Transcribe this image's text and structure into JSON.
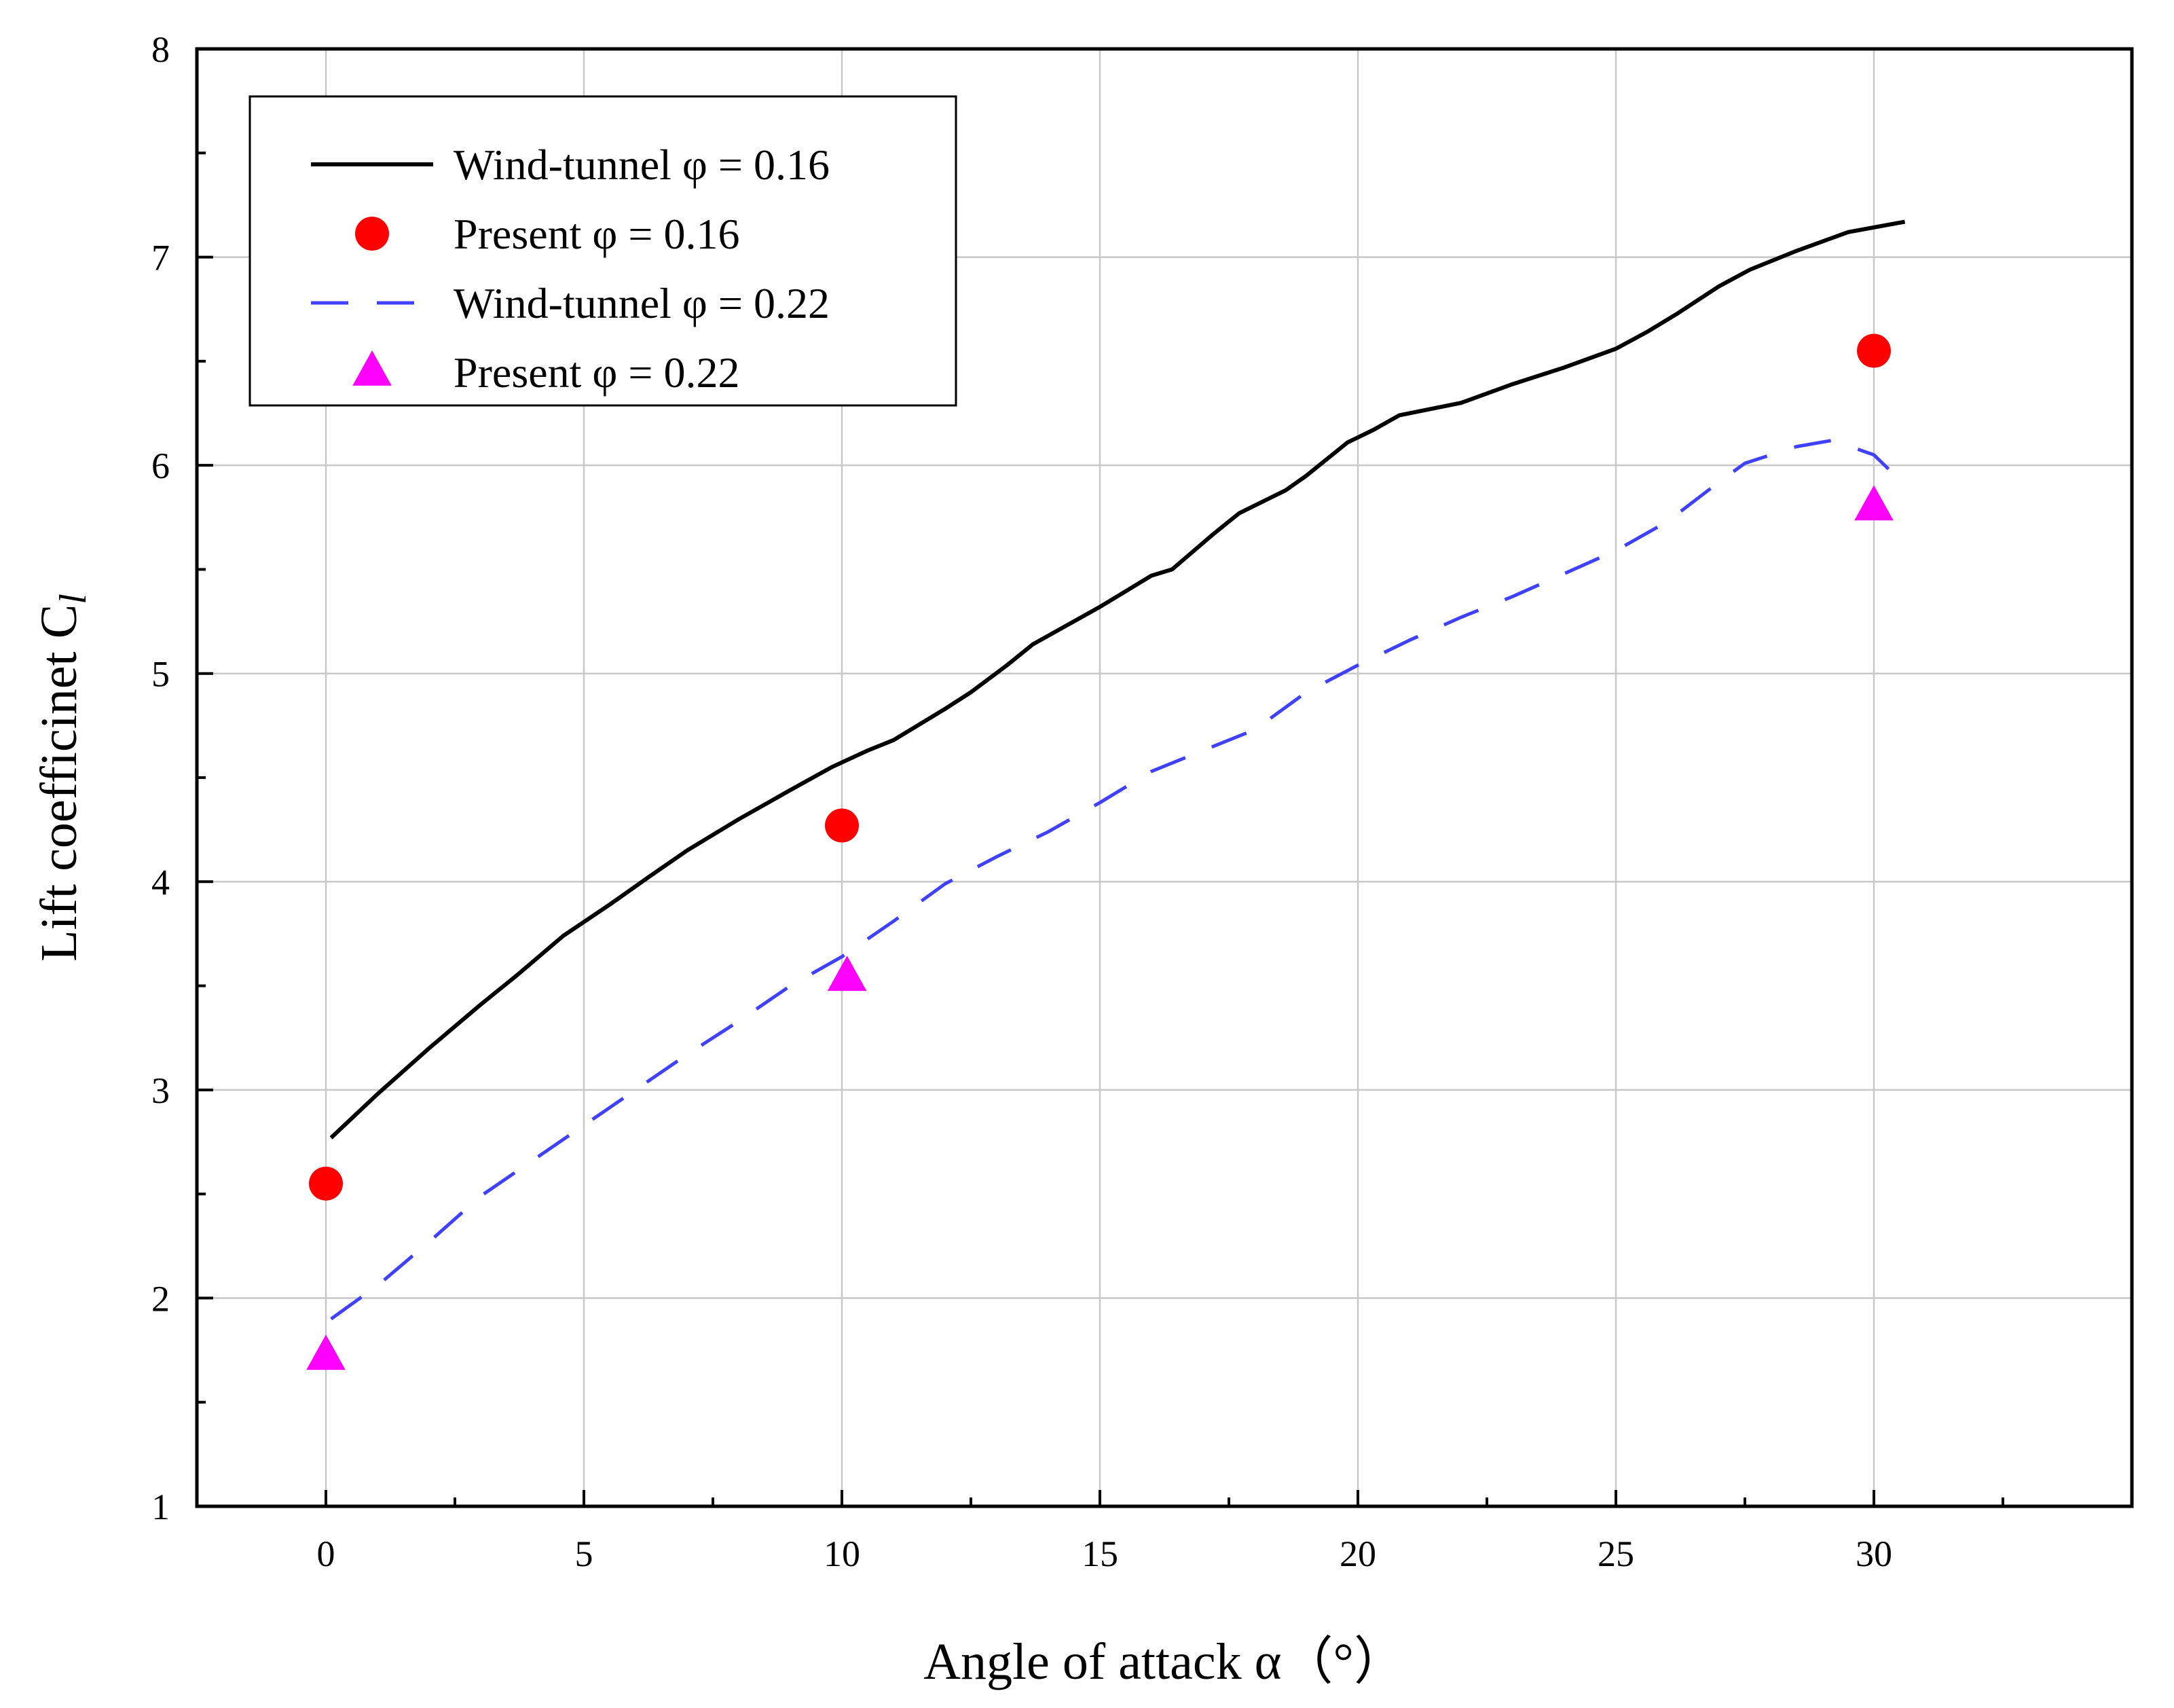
{
  "chart_data": {
    "type": "line",
    "xlabel": "Angle of attack α（°）",
    "ylabel": "Lift coefficinet C",
    "ylabel_sub": "l",
    "xlim": [
      -2.5,
      35
    ],
    "ylim": [
      1,
      8
    ],
    "xticks": [
      "0",
      "5",
      "10",
      "15",
      "20",
      "25",
      "30"
    ],
    "xtick_values": [
      0,
      5,
      10,
      15,
      20,
      25,
      30
    ],
    "yticks": [
      "1",
      "2",
      "3",
      "4",
      "5",
      "6",
      "7",
      "8"
    ],
    "ytick_values": [
      1,
      2,
      3,
      4,
      5,
      6,
      7,
      8
    ],
    "grid": true,
    "legend_position": "top-left",
    "series": [
      {
        "name": "Wind-tunnel φ = 0.16",
        "style": "solid-line",
        "color": "#000000",
        "x": [
          0.1,
          1,
          2,
          3,
          3.7,
          4.6,
          5.5,
          6.3,
          7,
          8,
          9,
          9.8,
          10.5,
          11,
          12,
          12.5,
          13.2,
          13.7,
          15,
          16,
          16.4,
          17.2,
          17.7,
          18.6,
          19,
          19.8,
          20.3,
          20.8,
          22,
          23,
          24,
          25,
          25.6,
          26.2,
          27,
          27.6,
          28.5,
          29.5,
          30.6
        ],
        "y": [
          2.77,
          2.98,
          3.2,
          3.41,
          3.55,
          3.74,
          3.89,
          4.03,
          4.15,
          4.3,
          4.44,
          4.55,
          4.63,
          4.68,
          4.83,
          4.91,
          5.04,
          5.14,
          5.32,
          5.47,
          5.5,
          5.67,
          5.77,
          5.88,
          5.95,
          6.11,
          6.17,
          6.24,
          6.3,
          6.39,
          6.47,
          6.56,
          6.64,
          6.73,
          6.86,
          6.94,
          7.03,
          7.12,
          7.17
        ]
      },
      {
        "name": "Present φ = 0.16",
        "style": "circle-marker",
        "color": "#ff0000",
        "x": [
          0,
          10,
          30
        ],
        "y": [
          2.55,
          4.27,
          6.55
        ]
      },
      {
        "name": "Wind-tunnel φ = 0.22",
        "style": "dashed-line",
        "color": "#4040ff",
        "x": [
          0.1,
          1,
          2,
          3,
          4,
          5,
          6,
          7,
          8,
          9,
          10,
          11,
          12,
          13,
          14,
          15,
          16,
          17,
          18,
          19,
          20,
          21,
          22,
          23,
          24,
          25,
          26,
          27,
          27.5,
          28.5,
          29.2,
          30,
          30.5
        ],
        "y": [
          1.9,
          2.06,
          2.27,
          2.49,
          2.66,
          2.83,
          3.0,
          3.17,
          3.33,
          3.5,
          3.64,
          3.81,
          3.99,
          4.12,
          4.24,
          4.38,
          4.53,
          4.63,
          4.73,
          4.91,
          5.04,
          5.16,
          5.27,
          5.37,
          5.48,
          5.59,
          5.73,
          5.92,
          6.01,
          6.09,
          6.12,
          6.05,
          5.93
        ]
      },
      {
        "name": "Present φ = 0.22",
        "style": "triangle-marker",
        "color": "#ff00ff",
        "x": [
          0,
          10.1,
          30
        ],
        "y": [
          1.72,
          3.54,
          5.8
        ]
      }
    ]
  }
}
